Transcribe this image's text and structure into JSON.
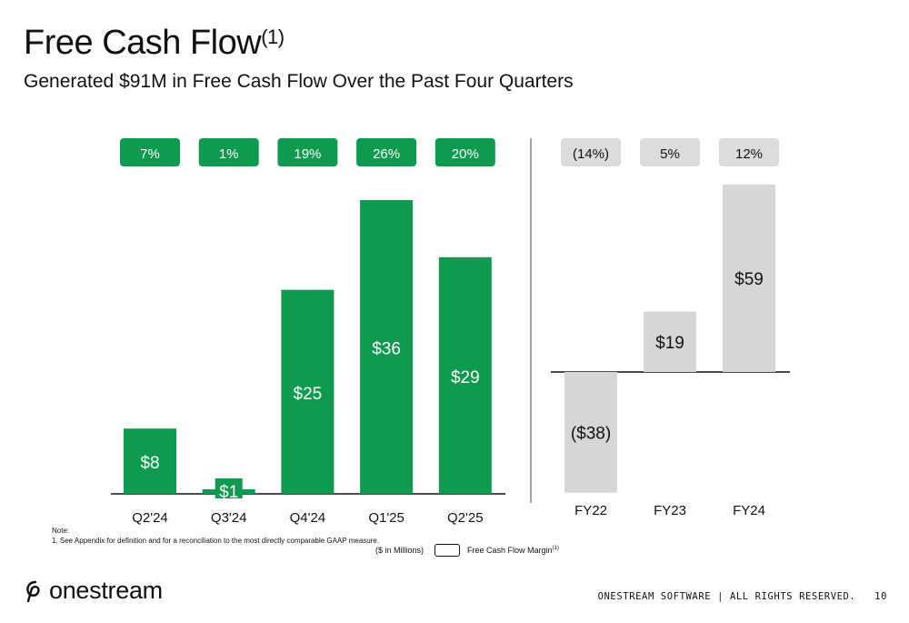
{
  "header": {
    "title": "Free Cash Flow",
    "title_sup": "(1)",
    "subtitle": "Generated $91M in Free Cash Flow Over the Past Four Quarters"
  },
  "chart_data": [
    {
      "type": "bar",
      "categories": [
        "Q2'24",
        "Q3'24",
        "Q4'24",
        "Q1'25",
        "Q2'25"
      ],
      "values": [
        8,
        1,
        25,
        36,
        29
      ],
      "value_labels": [
        "$8",
        "$1",
        "$25",
        "$36",
        "$29"
      ],
      "margin_labels": [
        "7%",
        "1%",
        "19%",
        "26%",
        "20%"
      ],
      "color": "#0e9a4f",
      "ylim": [
        0,
        36
      ]
    },
    {
      "type": "bar",
      "categories": [
        "FY22",
        "FY23",
        "FY24"
      ],
      "values": [
        -38,
        19,
        59
      ],
      "value_labels": [
        "($38)",
        "$19",
        "$59"
      ],
      "margin_labels": [
        "(14%)",
        "5%",
        "12%"
      ],
      "color": "#d6d6d6",
      "ylim": [
        -38,
        59
      ]
    }
  ],
  "legend": {
    "units": "($ in Millions)",
    "margin_label": "Free Cash Flow Margin",
    "margin_sup": "(1)"
  },
  "note": {
    "heading": "Note:",
    "line1": "1.   See Appendix for definition and for a reconciliation to the most directly comparable GAAP measure."
  },
  "logo": {
    "text": "onestream"
  },
  "footer": {
    "text": "ONESTREAM SOFTWARE | ALL RIGHTS RESERVED.",
    "page": "10"
  },
  "colors": {
    "green": "#0e9a4f",
    "grey": "#d6d6d6",
    "grey_pill": "#dcdcdc",
    "text": "#111111"
  }
}
